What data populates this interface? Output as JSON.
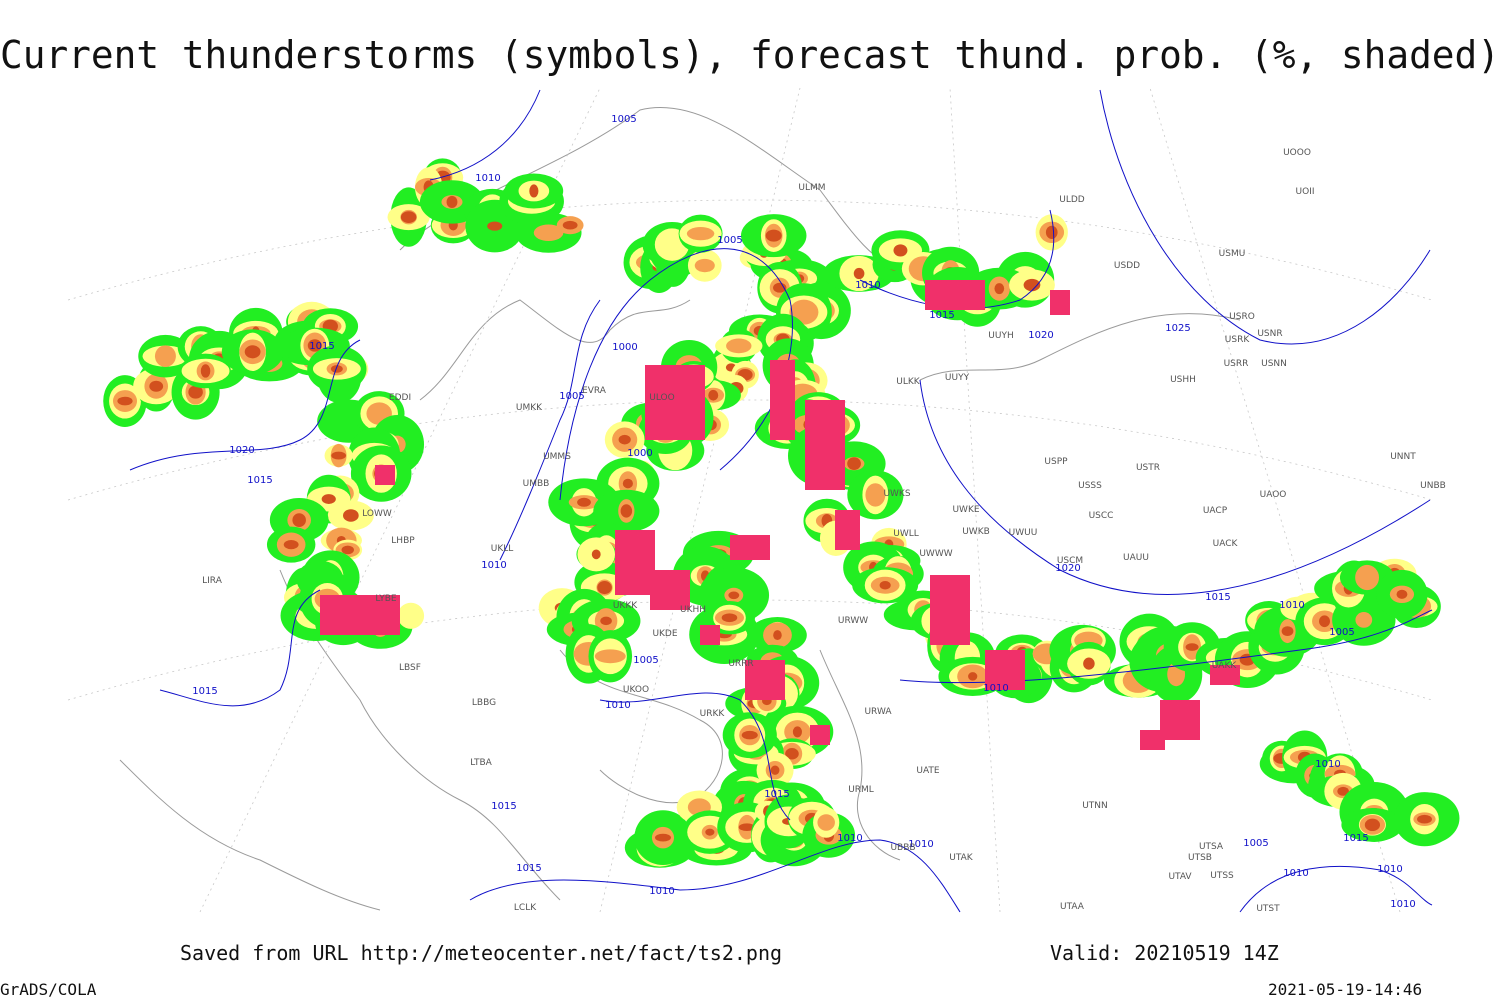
{
  "header": {
    "title": "Current thunderstorms (symbols), forecast thund. prob. (%, shaded)"
  },
  "map": {
    "isobar_labels": [
      1005,
      1010,
      1005,
      1010,
      1015,
      1020,
      1025,
      1015,
      1000,
      1005,
      1000,
      1020,
      1015,
      1010,
      1020,
      1015,
      1010,
      1005,
      1005,
      1010,
      1010,
      1015,
      1010,
      1015,
      1015,
      1010,
      1010,
      1005,
      1015,
      1015,
      1010,
      1010,
      1010,
      1010
    ],
    "station_labels": [
      "ULMM",
      "ULDD",
      "UOOO",
      "UOII",
      "USMU",
      "USDD",
      "USRO",
      "USRK",
      "USNR",
      "USRR",
      "USNN",
      "USHH",
      "ULKK",
      "UUYY",
      "UUYH",
      "ULOO",
      "UMKK",
      "EVRA",
      "UMMS",
      "UMBB",
      "USPP",
      "USSS",
      "USTR",
      "UWKS",
      "USCC",
      "UACP",
      "UWKE",
      "UWKB",
      "UWUU",
      "UWLL",
      "UWWW",
      "USCM",
      "UAUU",
      "UACK",
      "UAOO",
      "UNNT",
      "UNBB",
      "UKLL",
      "UKKK",
      "UKHH",
      "UKDE",
      "UKOO",
      "URRR",
      "URKK",
      "URWW",
      "URWA",
      "UATE",
      "URML",
      "UAKK",
      "UTAK",
      "UTNN",
      "UTSA",
      "UTSB",
      "UTAV",
      "UTSS",
      "UTST",
      "UTAA",
      "UBBB",
      "LCLK",
      "LBBG",
      "LBSF",
      "LTBA",
      "LIRA",
      "LHBP",
      "LOWW",
      "LYBE",
      "EDDI"
    ]
  },
  "footer": {
    "source": "Saved from URL http://meteocenter.net/fact/ts2.png",
    "valid": "Valid: 20210519 14Z",
    "software": "GrADS/COLA",
    "timestamp": "2021-05-19-14:46"
  }
}
